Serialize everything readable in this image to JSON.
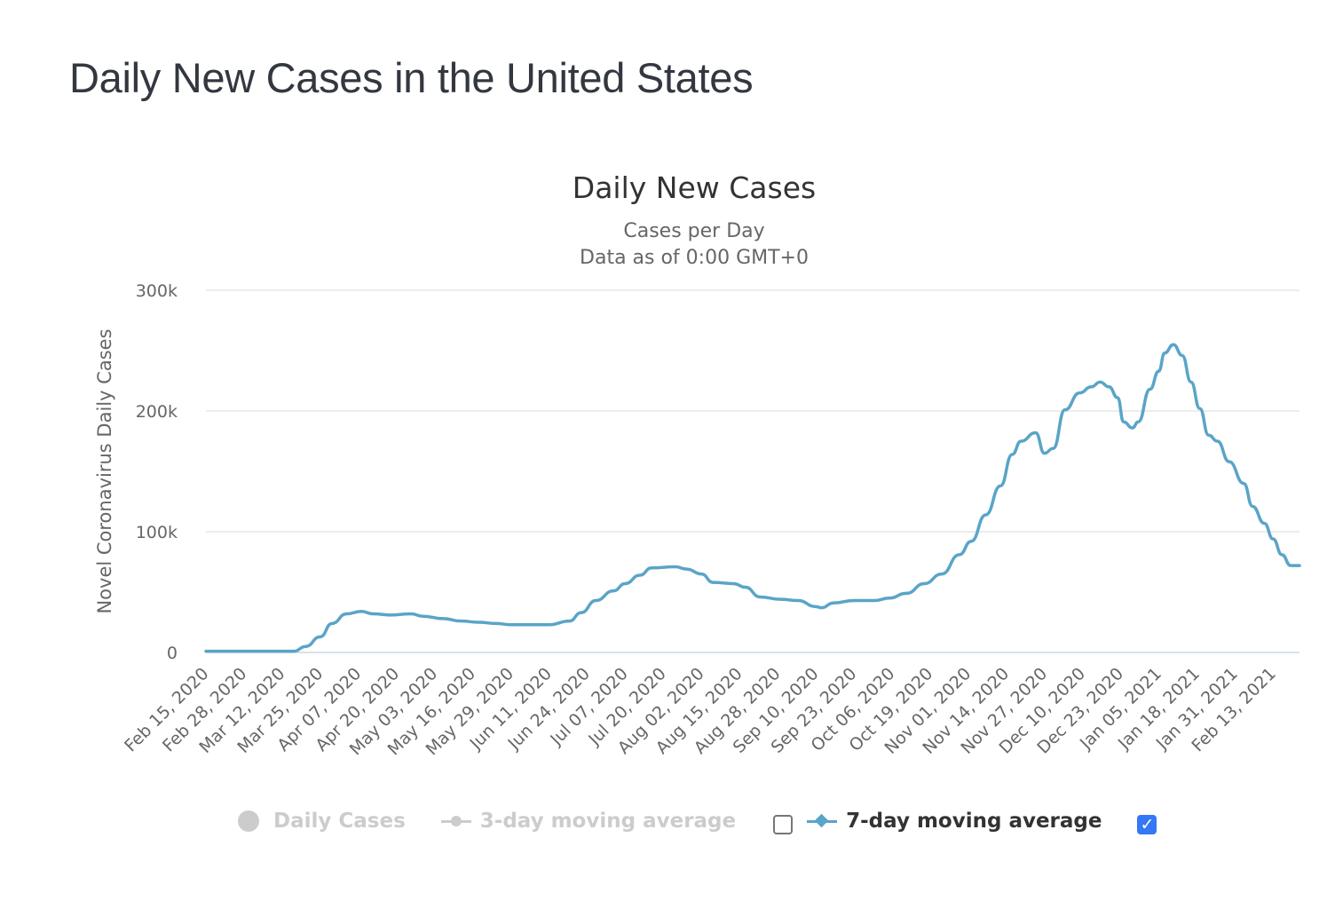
{
  "page": {
    "title": "Daily New Cases in the United States"
  },
  "legend": {
    "items": [
      {
        "label": "Daily Cases",
        "marker": "circle",
        "active": false
      },
      {
        "label": "3-day moving average",
        "marker": "line-circle",
        "active": false,
        "checkbox_checked": false
      },
      {
        "label": "7-day moving average",
        "marker": "line-diamond",
        "active": true,
        "checkbox_checked": true
      }
    ],
    "checkmark_icon": "✓"
  },
  "colors": {
    "series_7day": "#5aa4c8",
    "inactive": "#cccccc",
    "gridline": "#e6e6e6",
    "baseline": "#ccd6eb",
    "checkbox_checked": "#3478f6"
  },
  "chart_data": {
    "type": "line",
    "title": "Daily New Cases",
    "subtitle": [
      "Cases per Day",
      "Data as of 0:00 GMT+0"
    ],
    "xlabel": "",
    "ylabel": "Novel Coronavirus Daily Cases",
    "ylim": [
      0,
      300000
    ],
    "yticks": [
      0,
      100000,
      200000,
      300000
    ],
    "ytick_labels": [
      "0",
      "100k",
      "200k",
      "300k"
    ],
    "x_start": "Feb 15, 2020",
    "x_day_count": 373,
    "xtick_interval_days": 13,
    "xtick_labels": [
      "Feb 15, 2020",
      "Feb 28, 2020",
      "Mar 12, 2020",
      "Mar 25, 2020",
      "Apr 07, 2020",
      "Apr 20, 2020",
      "May 03, 2020",
      "May 16, 2020",
      "May 29, 2020",
      "Jun 11, 2020",
      "Jun 24, 2020",
      "Jul 07, 2020",
      "Jul 20, 2020",
      "Aug 02, 2020",
      "Aug 15, 2020",
      "Aug 28, 2020",
      "Sep 10, 2020",
      "Sep 23, 2020",
      "Oct 06, 2020",
      "Oct 19, 2020",
      "Nov 01, 2020",
      "Nov 14, 2020",
      "Nov 27, 2020",
      "Dec 10, 2020",
      "Dec 23, 2020",
      "Jan 05, 2021",
      "Jan 18, 2021",
      "Jan 31, 2021",
      "Feb 13, 2021"
    ],
    "grid": true,
    "legend_position": "bottom",
    "series": [
      {
        "name": "7-day moving average",
        "visible": true,
        "points_day_value": [
          [
            0,
            1000
          ],
          [
            30,
            1000
          ],
          [
            34,
            5000
          ],
          [
            39,
            13000
          ],
          [
            43,
            24000
          ],
          [
            48,
            32000
          ],
          [
            53,
            34000
          ],
          [
            57,
            32000
          ],
          [
            63,
            31000
          ],
          [
            70,
            32000
          ],
          [
            74,
            30000
          ],
          [
            81,
            28000
          ],
          [
            87,
            26000
          ],
          [
            93,
            25000
          ],
          [
            99,
            24000
          ],
          [
            104,
            23000
          ],
          [
            111,
            23000
          ],
          [
            117,
            23000
          ],
          [
            124,
            26000
          ],
          [
            128,
            33000
          ],
          [
            133,
            43000
          ],
          [
            139,
            51000
          ],
          [
            143,
            57000
          ],
          [
            148,
            64000
          ],
          [
            152,
            70000
          ],
          [
            160,
            71000
          ],
          [
            164,
            69000
          ],
          [
            169,
            65000
          ],
          [
            173,
            58000
          ],
          [
            180,
            57000
          ],
          [
            184,
            54000
          ],
          [
            189,
            46000
          ],
          [
            196,
            44000
          ],
          [
            202,
            43000
          ],
          [
            208,
            38000
          ],
          [
            210,
            37000
          ],
          [
            214,
            41000
          ],
          [
            221,
            43000
          ],
          [
            228,
            43000
          ],
          [
            233,
            45000
          ],
          [
            239,
            49000
          ],
          [
            245,
            57000
          ],
          [
            251,
            65000
          ],
          [
            257,
            81000
          ],
          [
            261,
            92000
          ],
          [
            266,
            114000
          ],
          [
            271,
            138000
          ],
          [
            275,
            164000
          ],
          [
            278,
            175000
          ],
          [
            283,
            182000
          ],
          [
            286,
            165000
          ],
          [
            289,
            169000
          ],
          [
            293,
            201000
          ],
          [
            298,
            215000
          ],
          [
            302,
            220000
          ],
          [
            305,
            224000
          ],
          [
            308,
            220000
          ],
          [
            311,
            211000
          ],
          [
            313,
            191000
          ],
          [
            316,
            186000
          ],
          [
            318,
            191000
          ],
          [
            322,
            218000
          ],
          [
            325,
            233000
          ],
          [
            327,
            248000
          ],
          [
            330,
            255000
          ],
          [
            333,
            246000
          ],
          [
            336,
            224000
          ],
          [
            339,
            202000
          ],
          [
            342,
            180000
          ],
          [
            345,
            175000
          ],
          [
            349,
            158000
          ],
          [
            354,
            140000
          ],
          [
            357,
            121000
          ],
          [
            361,
            107000
          ],
          [
            364,
            94000
          ],
          [
            367,
            81000
          ],
          [
            370,
            72000
          ],
          [
            373,
            72000
          ]
        ]
      },
      {
        "name": "Daily Cases",
        "visible": false
      },
      {
        "name": "3-day moving average",
        "visible": false
      }
    ]
  }
}
